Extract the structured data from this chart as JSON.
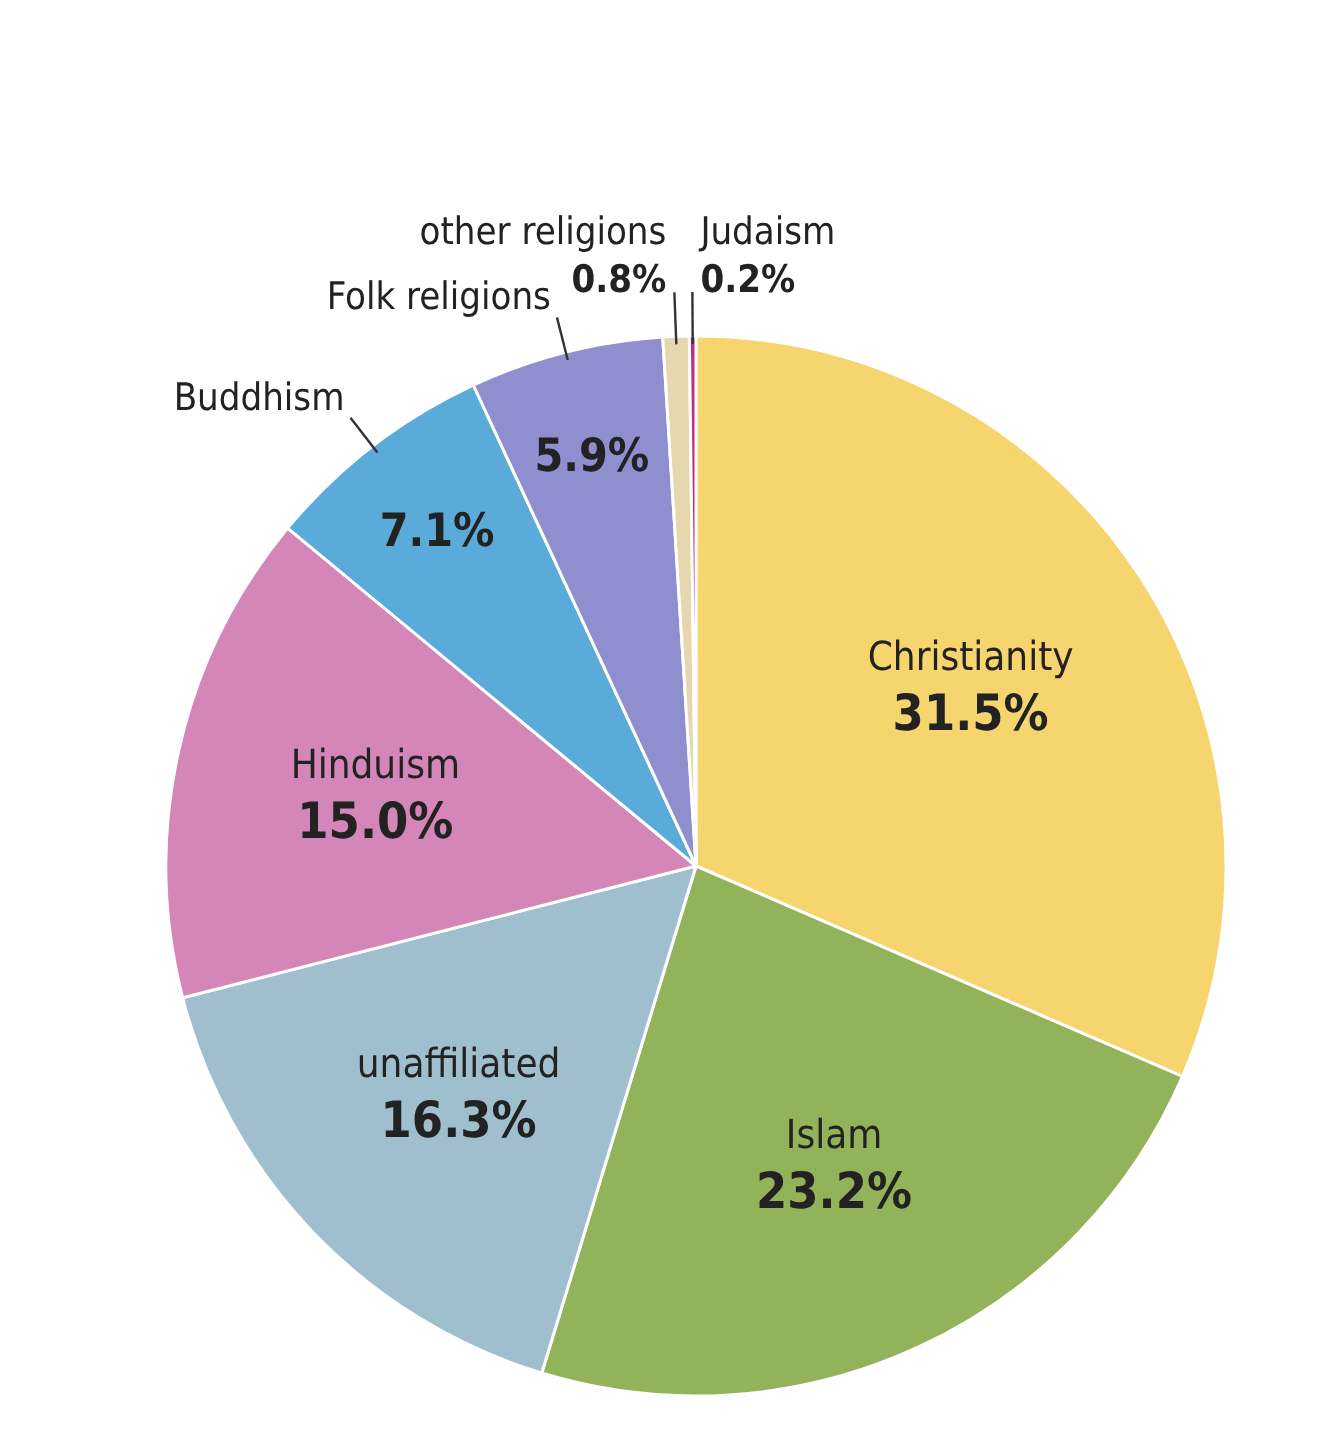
{
  "chart_data": {
    "type": "pie",
    "categories": [
      "Christianity",
      "Islam",
      "unaffiliated",
      "Hinduism",
      "Buddhism",
      "Folk religions",
      "other religions",
      "Judaism"
    ],
    "values": [
      31.5,
      23.2,
      16.3,
      15.0,
      7.1,
      5.9,
      0.8,
      0.2
    ],
    "value_labels": [
      "31.5%",
      "23.2%",
      "16.3%",
      "15.0%",
      "7.1%",
      "5.9%",
      "0.8%",
      "0.2%"
    ],
    "colors": [
      "#f6d46e",
      "#93b35a",
      "#9fbfcf",
      "#d486b8",
      "#5aabd9",
      "#8f8fcf",
      "#e6d7b0",
      "#c0307a"
    ]
  }
}
